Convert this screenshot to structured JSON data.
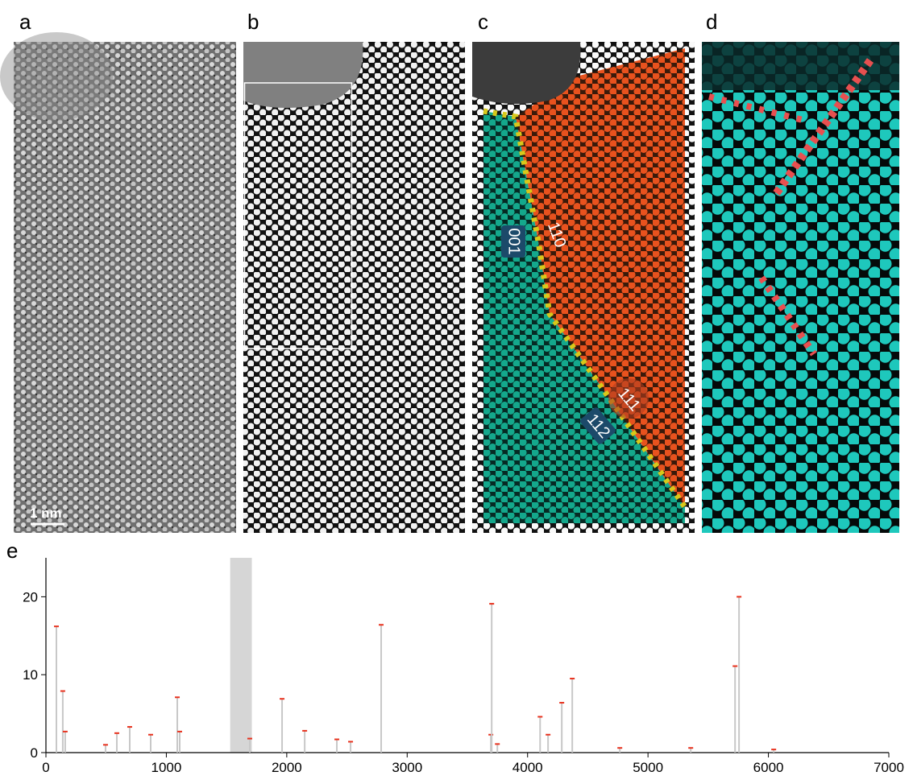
{
  "panels": [
    {
      "label": "a",
      "scale_bar": "1 nm"
    },
    {
      "label": "b"
    },
    {
      "label": "c",
      "annotations": [
        "001",
        "110",
        "111",
        "112"
      ]
    },
    {
      "label": "d"
    }
  ],
  "chart_data": {
    "type": "stick",
    "panel_label": "e",
    "x": [
      87,
      140,
      160,
      495,
      589,
      696,
      870,
      1091,
      1111,
      1693,
      1961,
      2149,
      2416,
      2530,
      2784,
      3695,
      3702,
      3749,
      4104,
      4170,
      4284,
      4371,
      4766,
      5355,
      5723,
      5756,
      6044
    ],
    "values": [
      16.2,
      7.9,
      2.7,
      1.0,
      2.5,
      3.3,
      2.3,
      7.1,
      2.7,
      1.8,
      6.9,
      2.8,
      1.7,
      1.4,
      16.4,
      2.3,
      19.1,
      1.1,
      4.6,
      2.3,
      6.4,
      9.5,
      0.6,
      0.6,
      11.1,
      20.0,
      0.4
    ],
    "color": "#c8c8c8",
    "marker_color": "#e8321e",
    "shaded_region": [
      1530,
      1710
    ],
    "xlim": [
      0,
      7000
    ],
    "ylim": [
      0,
      25
    ],
    "xticks": [
      0,
      1000,
      2000,
      3000,
      4000,
      5000,
      6000,
      7000
    ],
    "yticks": [
      0,
      10,
      20
    ]
  }
}
